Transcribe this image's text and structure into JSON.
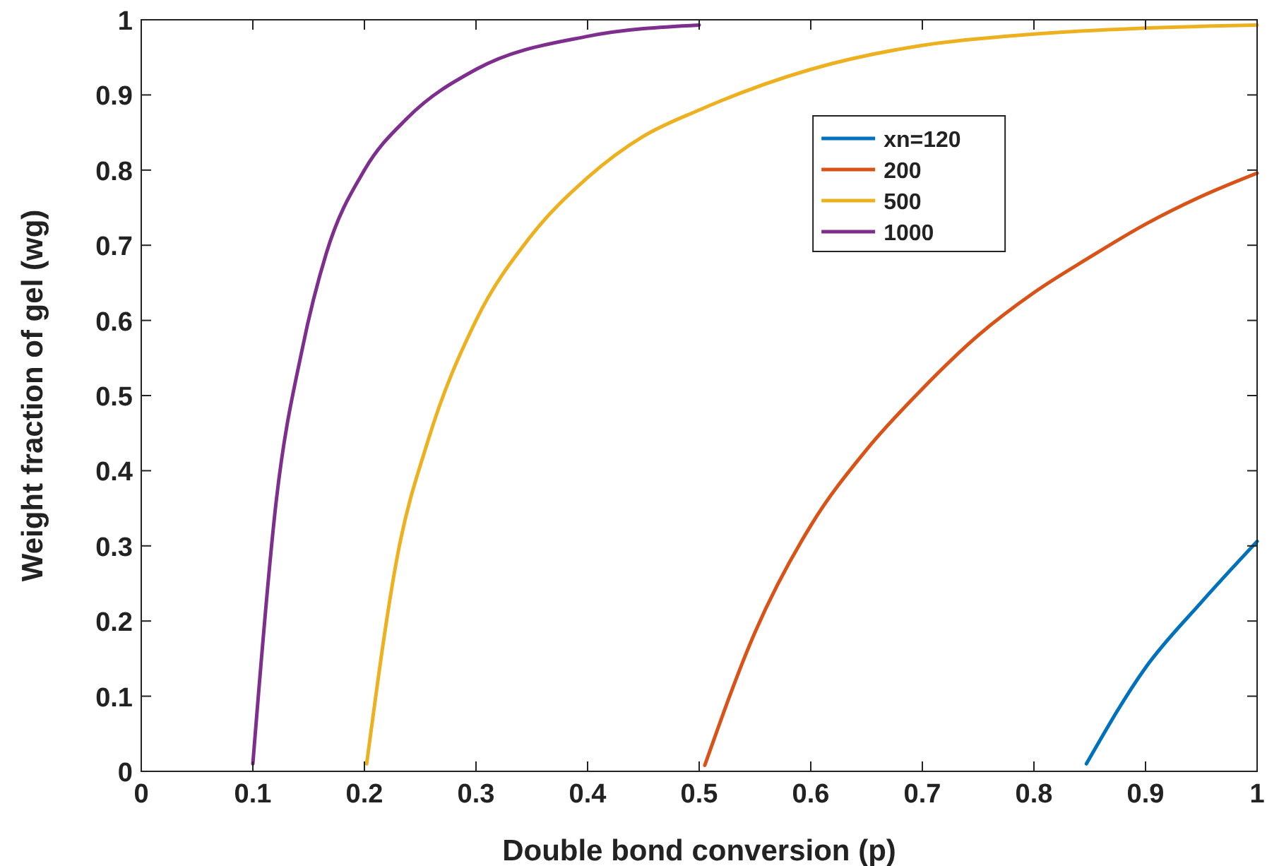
{
  "chart_data": {
    "type": "line",
    "xlabel": "Double bond conversion (p)",
    "ylabel": "Weight fraction of gel (wg)",
    "xlim": [
      0,
      1
    ],
    "ylim": [
      0,
      1
    ],
    "xticks": [
      0,
      0.1,
      0.2,
      0.3,
      0.4,
      0.5,
      0.6,
      0.7,
      0.8,
      0.9,
      1
    ],
    "yticks": [
      0,
      0.1,
      0.2,
      0.3,
      0.4,
      0.5,
      0.6,
      0.7,
      0.8,
      0.9,
      1
    ],
    "grid": false,
    "legend": "top right",
    "line_style": "solid",
    "series": [
      {
        "name": "xn=120",
        "color": "#0072bd",
        "x": [
          0.847,
          0.9,
          0.95,
          1.0
        ],
        "values": [
          0.01,
          0.138,
          0.225,
          0.306
        ]
      },
      {
        "name": "200",
        "color": "#d95319",
        "x": [
          0.505,
          0.55,
          0.6,
          0.65,
          0.7,
          0.75,
          0.8,
          0.85,
          0.9,
          0.95,
          1.0
        ],
        "values": [
          0.008,
          0.185,
          0.327,
          0.428,
          0.509,
          0.58,
          0.637,
          0.684,
          0.728,
          0.765,
          0.796
        ]
      },
      {
        "name": "500",
        "color": "#edb120",
        "x": [
          0.202,
          0.23,
          0.257,
          0.3,
          0.348,
          0.4,
          0.45,
          0.5,
          0.6,
          0.7,
          0.8,
          0.9,
          1.0
        ],
        "values": [
          0.01,
          0.29,
          0.44,
          0.6,
          0.71,
          0.79,
          0.845,
          0.88,
          0.934,
          0.966,
          0.981,
          0.989,
          0.993
        ]
      },
      {
        "name": "1000",
        "color": "#7e2f8e",
        "x": [
          0.1,
          0.121,
          0.144,
          0.166,
          0.2,
          0.239,
          0.3,
          0.4,
          0.5
        ],
        "values": [
          0.01,
          0.36,
          0.56,
          0.69,
          0.8,
          0.87,
          0.934,
          0.978,
          0.993
        ]
      }
    ]
  }
}
